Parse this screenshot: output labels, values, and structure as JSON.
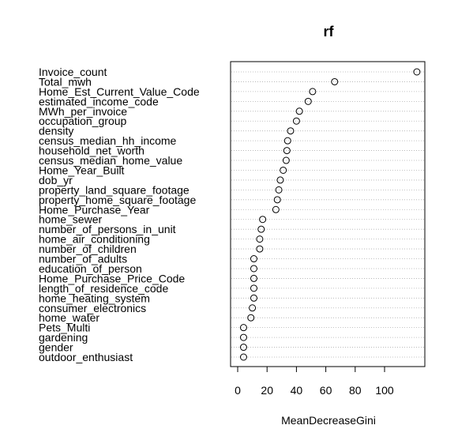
{
  "chart_data": {
    "type": "scatter",
    "title": "rf",
    "xlabel": "MeanDecreaseGini",
    "ylabel": "",
    "xlim": [
      -2,
      125
    ],
    "xticks": [
      0,
      20,
      40,
      60,
      80,
      100
    ],
    "grid": "dotted-horizontal",
    "legend": "none",
    "colors": {
      "point_stroke": "#000000",
      "guide": "#b0b0b0"
    },
    "categories": [
      "Invoice_count",
      "Total_mwh",
      "Home_Est_Current_Value_Code",
      "estimated_income_code",
      "MWh_per_invoice",
      "occupation_group",
      "density",
      "census_median_hh_income",
      "household_net_worth",
      "census_median_home_value",
      "Home_Year_Built",
      "dob_yr",
      "property_land_square_footage",
      "property_home_square_footage",
      "Home_Purchase_Year",
      "home_sewer",
      "number_of_persons_in_unit",
      "home_air_conditioning",
      "number_of_children",
      "number_of_adults",
      "education_of_person",
      "Home_Purchase_Price_Code",
      "length_of_residence_code",
      "home_heating_system",
      "consumer_electronics",
      "home_water",
      "Pets_Multi",
      "gardening",
      "gender",
      "outdoor_enthusiast"
    ],
    "values": [
      122,
      66,
      51,
      48,
      42,
      40,
      36,
      34,
      33.5,
      33,
      31,
      29,
      28,
      27,
      26,
      17,
      16,
      15,
      15,
      11,
      11,
      11,
      11,
      11,
      10,
      9,
      4,
      4,
      4,
      4
    ]
  }
}
